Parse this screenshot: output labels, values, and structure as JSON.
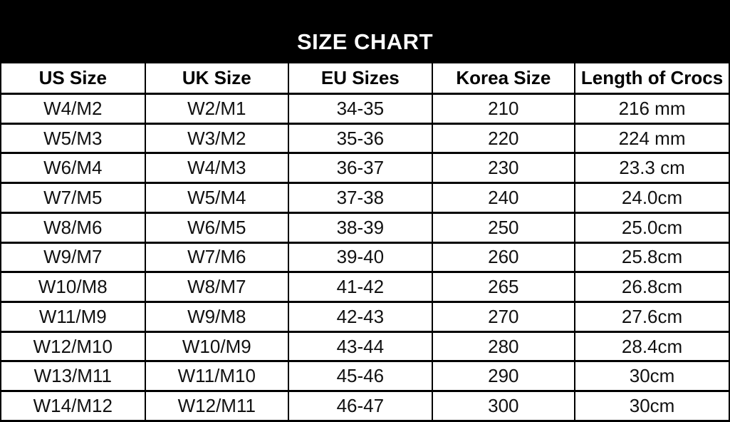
{
  "title": "SIZE CHART",
  "colors": {
    "title_bar_bg": "#000000",
    "title_text": "#ffffff",
    "border": "#000000",
    "cell_text": "#111111",
    "cell_bg": "#ffffff"
  },
  "table": {
    "columns": [
      "US Size",
      "UK Size",
      "EU Sizes",
      "Korea Size",
      "Length of Crocs"
    ],
    "rows": [
      [
        "W4/M2",
        "W2/M1",
        "34-35",
        "210",
        "216 mm"
      ],
      [
        "W5/M3",
        "W3/M2",
        "35-36",
        "220",
        "224 mm"
      ],
      [
        "W6/M4",
        "W4/M3",
        "36-37",
        "230",
        "23.3 cm"
      ],
      [
        "W7/M5",
        "W5/M4",
        "37-38",
        "240",
        "24.0cm"
      ],
      [
        "W8/M6",
        "W6/M5",
        "38-39",
        "250",
        "25.0cm"
      ],
      [
        "W9/M7",
        "W7/M6",
        "39-40",
        "260",
        "25.8cm"
      ],
      [
        "W10/M8",
        "W8/M7",
        "41-42",
        "265",
        "26.8cm"
      ],
      [
        "W11/M9",
        "W9/M8",
        "42-43",
        "270",
        "27.6cm"
      ],
      [
        "W12/M10",
        "W10/M9",
        "43-44",
        "280",
        "28.4cm"
      ],
      [
        "W13/M11",
        "W11/M10",
        "45-46",
        "290",
        "30cm"
      ],
      [
        "W14/M12",
        "W12/M11",
        "46-47",
        "300",
        "30cm"
      ]
    ]
  },
  "chart_data": {
    "type": "table",
    "title": "SIZE CHART",
    "columns": [
      "US Size",
      "UK Size",
      "EU Sizes",
      "Korea Size",
      "Length of Crocs"
    ],
    "rows": [
      [
        "W4/M2",
        "W2/M1",
        "34-35",
        "210",
        "216 mm"
      ],
      [
        "W5/M3",
        "W3/M2",
        "35-36",
        "220",
        "224 mm"
      ],
      [
        "W6/M4",
        "W4/M3",
        "36-37",
        "230",
        "23.3 cm"
      ],
      [
        "W7/M5",
        "W5/M4",
        "37-38",
        "240",
        "24.0cm"
      ],
      [
        "W8/M6",
        "W6/M5",
        "38-39",
        "250",
        "25.0cm"
      ],
      [
        "W9/M7",
        "W7/M6",
        "39-40",
        "260",
        "25.8cm"
      ],
      [
        "W10/M8",
        "W8/M7",
        "41-42",
        "265",
        "26.8cm"
      ],
      [
        "W11/M9",
        "W9/M8",
        "42-43",
        "270",
        "27.6cm"
      ],
      [
        "W12/M10",
        "W10/M9",
        "43-44",
        "280",
        "28.4cm"
      ],
      [
        "W13/M11",
        "W11/M10",
        "45-46",
        "290",
        "30cm"
      ],
      [
        "W14/M12",
        "W12/M11",
        "46-47",
        "300",
        "30cm"
      ]
    ]
  }
}
